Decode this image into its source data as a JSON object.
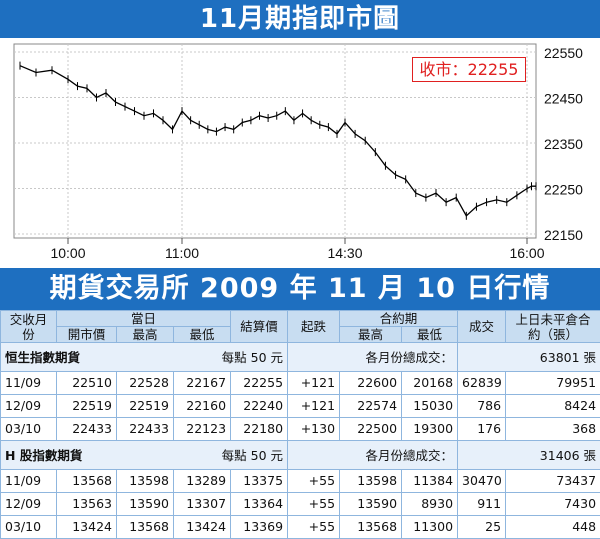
{
  "chart": {
    "title": "11月期指即市圖",
    "close_label": "收市：22255",
    "colors": {
      "banner": "#1e6fc0",
      "price": "#000000",
      "close_text": "#e02020",
      "grid": "#c8c8c8"
    }
  },
  "chart_data": {
    "type": "line",
    "title": "11月期指即市圖",
    "annotation": "收市：22255",
    "x_ticks": [
      "10:00",
      "11:00",
      "14:30",
      "16:00"
    ],
    "y_ticks": [
      22550,
      22450,
      22350,
      22250,
      22150
    ],
    "ylim": [
      22150,
      22550
    ],
    "xlim": [
      "09:45",
      "16:10"
    ],
    "grid": true,
    "series": [
      {
        "x": [
          "09:45",
          "09:50",
          "09:55",
          "10:00",
          "10:05",
          "10:10",
          "10:15",
          "10:20",
          "10:25",
          "10:30",
          "10:35",
          "10:40",
          "10:45",
          "10:50",
          "10:55",
          "11:00",
          "11:05",
          "11:10",
          "11:15",
          "11:20",
          "11:25",
          "11:30",
          "11:35",
          "11:40",
          "11:45",
          "11:50",
          "11:55",
          "12:00",
          "12:05",
          "12:10",
          "12:15",
          "12:20",
          "12:25",
          "12:30",
          "14:30",
          "14:35",
          "14:40",
          "14:45",
          "14:50",
          "14:55",
          "15:00",
          "15:05",
          "15:10",
          "15:15",
          "15:20",
          "15:25",
          "15:30",
          "15:35",
          "15:40",
          "15:45",
          "15:50",
          "15:55",
          "16:00",
          "16:05",
          "16:10"
        ],
        "values": [
          22520,
          22505,
          22510,
          22490,
          22475,
          22470,
          22450,
          22460,
          22440,
          22430,
          22420,
          22410,
          22415,
          22400,
          22380,
          22420,
          22400,
          22390,
          22380,
          22375,
          22385,
          22380,
          22395,
          22400,
          22410,
          22405,
          22410,
          22420,
          22400,
          22415,
          22400,
          22390,
          22385,
          22370,
          22395,
          22370,
          22355,
          22330,
          22300,
          22280,
          22270,
          22240,
          22230,
          22240,
          22220,
          22230,
          22190,
          22210,
          22220,
          22225,
          22220,
          22235,
          22250,
          22255,
          22255
        ]
      }
    ]
  },
  "table": {
    "title": "期貨交易所 2009 年 11 月 10 日行情",
    "headers": {
      "month": "交收月份",
      "day": "當日",
      "open": "開市價",
      "high": "最高",
      "low": "最低",
      "settle": "結算價",
      "change": "起跌",
      "contract": "合約期",
      "c_high": "最高",
      "c_low": "最低",
      "volume": "成交",
      "oi": "上日未平倉合約（張）"
    },
    "groups": [
      {
        "name": "恒生指數期貨",
        "unit": "每點 50 元",
        "total_label": "各月份總成交：",
        "total_value": "63801 張",
        "rows": [
          [
            "11/09",
            "22510",
            "22528",
            "22167",
            "22255",
            "+121",
            "22600",
            "20168",
            "62839",
            "79951"
          ],
          [
            "12/09",
            "22519",
            "22519",
            "22160",
            "22240",
            "+121",
            "22574",
            "15030",
            "786",
            "8424"
          ],
          [
            "03/10",
            "22433",
            "22433",
            "22123",
            "22180",
            "+130",
            "22500",
            "19300",
            "176",
            "368"
          ]
        ]
      },
      {
        "name": "H 股指數期貨",
        "unit": "每點 50 元",
        "total_label": "各月份總成交：",
        "total_value": "31406 張",
        "rows": [
          [
            "11/09",
            "13568",
            "13598",
            "13289",
            "13375",
            "+55",
            "13598",
            "11384",
            "30470",
            "73437"
          ],
          [
            "12/09",
            "13563",
            "13590",
            "13307",
            "13364",
            "+55",
            "13590",
            "8930",
            "911",
            "7430"
          ],
          [
            "03/10",
            "13424",
            "13568",
            "13424",
            "13369",
            "+55",
            "13568",
            "11300",
            "25",
            "448"
          ]
        ]
      }
    ]
  }
}
